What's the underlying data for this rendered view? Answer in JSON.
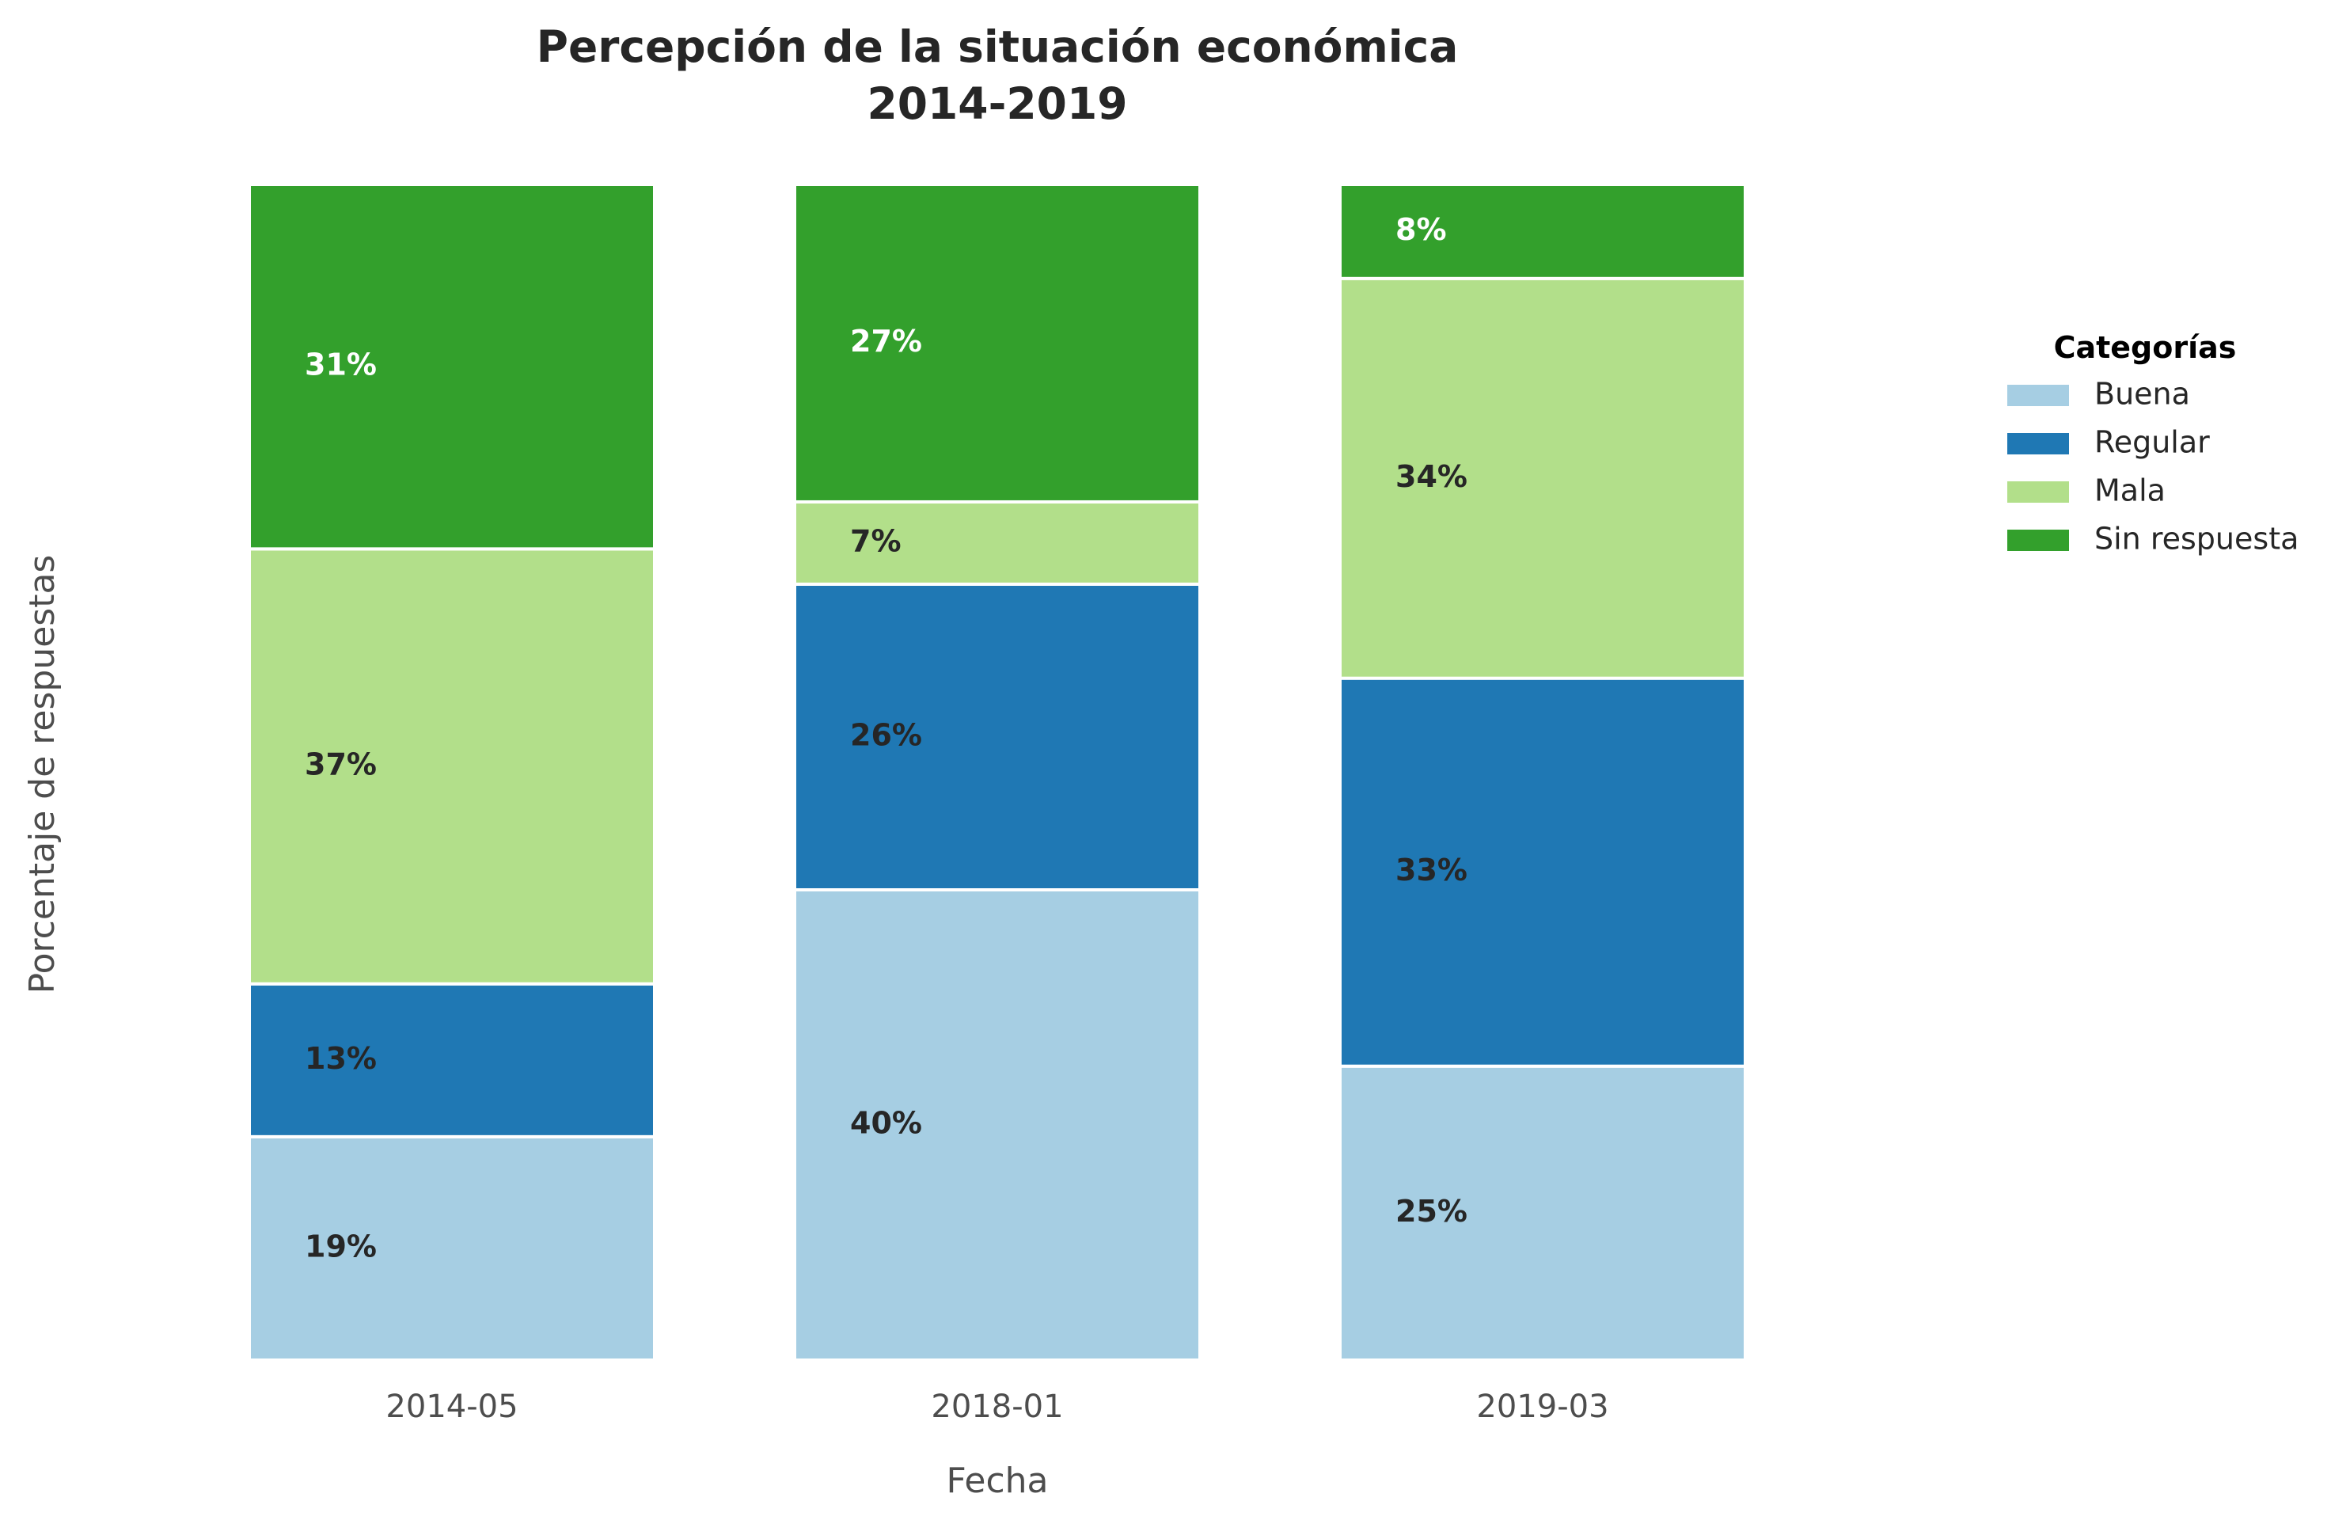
{
  "chart_data": {
    "type": "bar",
    "stacked": true,
    "title": "Percepción de la situación económica",
    "subtitle": "2014-2019",
    "xlabel": "Fecha",
    "ylabel": "Porcentaje de respuestas",
    "ylim": [
      0,
      100
    ],
    "grid": false,
    "categories": [
      "2014-05",
      "2018-01",
      "2019-03"
    ],
    "series": [
      {
        "name": "Buena",
        "color": "#a6cee3",
        "label_color": "#262626",
        "values": [
          19,
          40,
          25
        ],
        "labels": [
          "19%",
          "40%",
          "25%"
        ]
      },
      {
        "name": "Regular",
        "color": "#1f78b4",
        "label_color": "#262626",
        "values": [
          13,
          26,
          33
        ],
        "labels": [
          "13%",
          "26%",
          "33%"
        ]
      },
      {
        "name": "Mala",
        "color": "#b2df8a",
        "label_color": "#262626",
        "values": [
          37,
          7,
          34
        ],
        "labels": [
          "37%",
          "7%",
          "34%"
        ]
      },
      {
        "name": "Sin respuesta",
        "color": "#33a02c",
        "label_color": "#ffffff",
        "values": [
          31,
          27,
          8
        ],
        "labels": [
          "31%",
          "27%",
          "8%"
        ]
      }
    ],
    "legend": {
      "title": "Categorías",
      "placement": "right"
    }
  }
}
